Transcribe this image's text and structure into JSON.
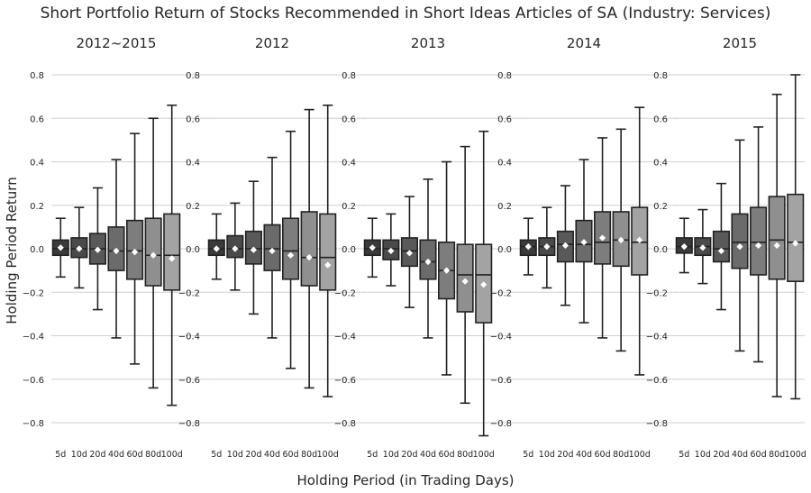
{
  "figure": {
    "title": "Short Portfolio Return of Stocks Recommended in Short Ideas Articles of SA (Industry: Services)",
    "ylabel": "Holding Period Return",
    "xlabel": "Holding Period (in Trading Days)"
  },
  "chart_data": [
    {
      "type": "boxplot",
      "title": "2012~2015",
      "categories": [
        "5d",
        "10d",
        "20d",
        "40d",
        "60d",
        "80d",
        "100d"
      ],
      "ylim": [
        -0.9,
        0.9
      ],
      "yticks": [
        "0.8",
        "0.6",
        "0.4",
        "0.2",
        "0.0",
        "−0.2",
        "−0.4",
        "−0.6",
        "−0.8"
      ],
      "boxes": [
        {
          "whislo": -0.13,
          "q1": -0.03,
          "med": 0.0,
          "q3": 0.04,
          "whishi": 0.14,
          "mean": 0.005,
          "color": "#3a3a3a"
        },
        {
          "whislo": -0.18,
          "q1": -0.04,
          "med": 0.0,
          "q3": 0.05,
          "whishi": 0.19,
          "mean": 0.0,
          "color": "#4a4a4a"
        },
        {
          "whislo": -0.28,
          "q1": -0.07,
          "med": 0.0,
          "q3": 0.07,
          "whishi": 0.28,
          "mean": -0.005,
          "color": "#595959"
        },
        {
          "whislo": -0.41,
          "q1": -0.1,
          "med": -0.01,
          "q3": 0.1,
          "whishi": 0.41,
          "mean": -0.01,
          "color": "#6b6b6b"
        },
        {
          "whislo": -0.53,
          "q1": -0.14,
          "med": -0.01,
          "q3": 0.13,
          "whishi": 0.53,
          "mean": -0.015,
          "color": "#7d7d7d"
        },
        {
          "whislo": -0.64,
          "q1": -0.17,
          "med": -0.03,
          "q3": 0.14,
          "whishi": 0.6,
          "mean": -0.03,
          "color": "#8f8f8f"
        },
        {
          "whislo": -0.72,
          "q1": -0.19,
          "med": -0.03,
          "q3": 0.16,
          "whishi": 0.66,
          "mean": -0.045,
          "color": "#a3a3a3"
        }
      ]
    },
    {
      "type": "boxplot",
      "title": "2012",
      "categories": [
        "5d",
        "10d",
        "20d",
        "40d",
        "60d",
        "80d",
        "100d"
      ],
      "ylim": [
        -0.9,
        0.9
      ],
      "yticks": [
        "0.8",
        "0.6",
        "0.4",
        "0.2",
        "0.0",
        "−0.2",
        "−0.4",
        "−0.6",
        "−0.8"
      ],
      "boxes": [
        {
          "whislo": -0.14,
          "q1": -0.03,
          "med": 0.0,
          "q3": 0.04,
          "whishi": 0.16,
          "mean": 0.0,
          "color": "#3a3a3a"
        },
        {
          "whislo": -0.19,
          "q1": -0.04,
          "med": 0.0,
          "q3": 0.06,
          "whishi": 0.21,
          "mean": 0.0,
          "color": "#4a4a4a"
        },
        {
          "whislo": -0.3,
          "q1": -0.07,
          "med": 0.0,
          "q3": 0.08,
          "whishi": 0.31,
          "mean": -0.005,
          "color": "#595959"
        },
        {
          "whislo": -0.41,
          "q1": -0.1,
          "med": 0.0,
          "q3": 0.11,
          "whishi": 0.42,
          "mean": -0.01,
          "color": "#6b6b6b"
        },
        {
          "whislo": -0.55,
          "q1": -0.14,
          "med": -0.01,
          "q3": 0.14,
          "whishi": 0.54,
          "mean": -0.03,
          "color": "#7d7d7d"
        },
        {
          "whislo": -0.64,
          "q1": -0.17,
          "med": -0.04,
          "q3": 0.17,
          "whishi": 0.64,
          "mean": -0.04,
          "color": "#8f8f8f"
        },
        {
          "whislo": -0.68,
          "q1": -0.19,
          "med": -0.04,
          "q3": 0.16,
          "whishi": 0.66,
          "mean": -0.075,
          "color": "#a3a3a3"
        }
      ]
    },
    {
      "type": "boxplot",
      "title": "2013",
      "categories": [
        "5d",
        "10d",
        "20d",
        "40d",
        "60d",
        "80d",
        "100d"
      ],
      "ylim": [
        -0.9,
        0.9
      ],
      "yticks": [
        "0.8",
        "0.6",
        "0.4",
        "0.2",
        "0.0",
        "−0.2",
        "−0.4",
        "−0.6",
        "−0.8"
      ],
      "boxes": [
        {
          "whislo": -0.13,
          "q1": -0.03,
          "med": 0.0,
          "q3": 0.04,
          "whishi": 0.14,
          "mean": 0.005,
          "color": "#3a3a3a"
        },
        {
          "whislo": -0.17,
          "q1": -0.05,
          "med": 0.0,
          "q3": 0.04,
          "whishi": 0.16,
          "mean": -0.01,
          "color": "#4a4a4a"
        },
        {
          "whislo": -0.27,
          "q1": -0.08,
          "med": -0.01,
          "q3": 0.05,
          "whishi": 0.24,
          "mean": -0.02,
          "color": "#595959"
        },
        {
          "whislo": -0.41,
          "q1": -0.14,
          "med": -0.06,
          "q3": 0.04,
          "whishi": 0.32,
          "mean": -0.06,
          "color": "#6b6b6b"
        },
        {
          "whislo": -0.58,
          "q1": -0.23,
          "med": -0.1,
          "q3": 0.03,
          "whishi": 0.4,
          "mean": -0.1,
          "color": "#7d7d7d"
        },
        {
          "whislo": -0.71,
          "q1": -0.29,
          "med": -0.12,
          "q3": 0.02,
          "whishi": 0.47,
          "mean": -0.15,
          "color": "#8f8f8f"
        },
        {
          "whislo": -0.86,
          "q1": -0.34,
          "med": -0.12,
          "q3": 0.02,
          "whishi": 0.54,
          "mean": -0.165,
          "color": "#a3a3a3"
        }
      ]
    },
    {
      "type": "boxplot",
      "title": "2014",
      "categories": [
        "5d",
        "10d",
        "20d",
        "40d",
        "60d",
        "80d",
        "100d"
      ],
      "ylim": [
        -0.9,
        0.9
      ],
      "yticks": [
        "0.8",
        "0.6",
        "0.4",
        "0.2",
        "0.0",
        "−0.2",
        "−0.4",
        "−0.6",
        "−0.8"
      ],
      "boxes": [
        {
          "whislo": -0.12,
          "q1": -0.03,
          "med": 0.01,
          "q3": 0.04,
          "whishi": 0.14,
          "mean": 0.01,
          "color": "#3a3a3a"
        },
        {
          "whislo": -0.18,
          "q1": -0.03,
          "med": 0.01,
          "q3": 0.05,
          "whishi": 0.19,
          "mean": 0.01,
          "color": "#4a4a4a"
        },
        {
          "whislo": -0.26,
          "q1": -0.06,
          "med": 0.02,
          "q3": 0.08,
          "whishi": 0.29,
          "mean": 0.015,
          "color": "#595959"
        },
        {
          "whislo": -0.34,
          "q1": -0.06,
          "med": 0.02,
          "q3": 0.13,
          "whishi": 0.41,
          "mean": 0.03,
          "color": "#6b6b6b"
        },
        {
          "whislo": -0.41,
          "q1": -0.07,
          "med": 0.03,
          "q3": 0.17,
          "whishi": 0.51,
          "mean": 0.05,
          "color": "#7d7d7d"
        },
        {
          "whislo": -0.47,
          "q1": -0.08,
          "med": 0.04,
          "q3": 0.17,
          "whishi": 0.55,
          "mean": 0.04,
          "color": "#8f8f8f"
        },
        {
          "whislo": -0.58,
          "q1": -0.12,
          "med": 0.03,
          "q3": 0.19,
          "whishi": 0.65,
          "mean": 0.04,
          "color": "#a3a3a3"
        }
      ]
    },
    {
      "type": "boxplot",
      "title": "2015",
      "categories": [
        "5d",
        "10d",
        "20d",
        "40d",
        "60d",
        "80d",
        "100d"
      ],
      "ylim": [
        -0.9,
        0.9
      ],
      "yticks": [
        "0.8",
        "0.6",
        "0.4",
        "0.2",
        "0.0",
        "−0.2",
        "−0.4",
        "−0.6",
        "−0.8"
      ],
      "boxes": [
        {
          "whislo": -0.11,
          "q1": -0.02,
          "med": 0.01,
          "q3": 0.05,
          "whishi": 0.14,
          "mean": 0.01,
          "color": "#3a3a3a"
        },
        {
          "whislo": -0.16,
          "q1": -0.03,
          "med": 0.01,
          "q3": 0.05,
          "whishi": 0.18,
          "mean": 0.005,
          "color": "#4a4a4a"
        },
        {
          "whislo": -0.28,
          "q1": -0.06,
          "med": 0.0,
          "q3": 0.08,
          "whishi": 0.3,
          "mean": -0.01,
          "color": "#595959"
        },
        {
          "whislo": -0.47,
          "q1": -0.09,
          "med": 0.03,
          "q3": 0.16,
          "whishi": 0.5,
          "mean": 0.01,
          "color": "#6b6b6b"
        },
        {
          "whislo": -0.52,
          "q1": -0.12,
          "med": 0.03,
          "q3": 0.19,
          "whishi": 0.56,
          "mean": 0.015,
          "color": "#7d7d7d"
        },
        {
          "whislo": -0.68,
          "q1": -0.14,
          "med": 0.04,
          "q3": 0.24,
          "whishi": 0.71,
          "mean": 0.015,
          "color": "#8f8f8f"
        },
        {
          "whislo": -0.69,
          "q1": -0.15,
          "med": 0.03,
          "q3": 0.25,
          "whishi": 0.8,
          "mean": 0.025,
          "color": "#a3a3a3"
        }
      ]
    }
  ]
}
